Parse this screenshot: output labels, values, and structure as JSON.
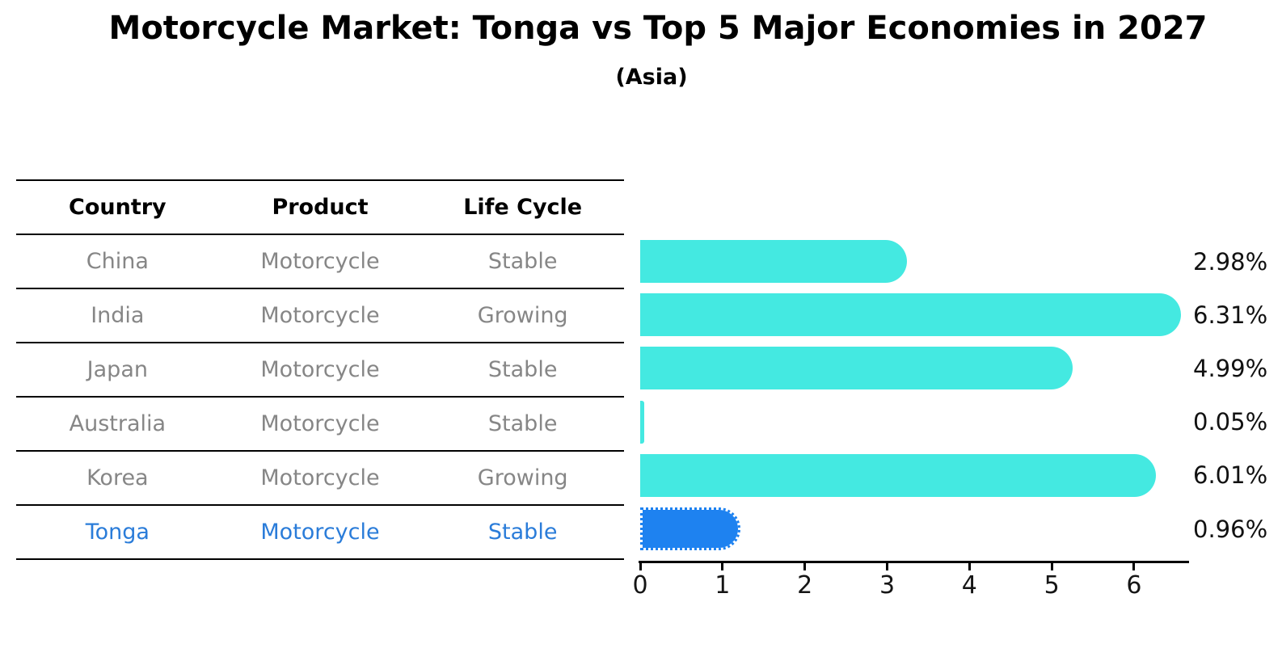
{
  "title": "Motorcycle Market: Tonga vs Top 5 Major Economies in 2027",
  "subtitle": "(Asia)",
  "table": {
    "headers": [
      "Country",
      "Product",
      "Life Cycle"
    ],
    "rows": [
      {
        "country": "China",
        "product": "Motorcycle",
        "life_cycle": "Stable",
        "highlight": false
      },
      {
        "country": "India",
        "product": "Motorcycle",
        "life_cycle": "Growing",
        "highlight": false
      },
      {
        "country": "Japan",
        "product": "Motorcycle",
        "life_cycle": "Stable",
        "highlight": false
      },
      {
        "country": "Australia",
        "product": "Motorcycle",
        "life_cycle": "Stable",
        "highlight": false
      },
      {
        "country": "Korea",
        "product": "Motorcycle",
        "life_cycle": "Growing",
        "highlight": false
      },
      {
        "country": "Tonga",
        "product": "Motorcycle",
        "life_cycle": "Stable",
        "highlight": true
      }
    ]
  },
  "chart_data": {
    "type": "bar",
    "orientation": "horizontal",
    "title": "Motorcycle Market: Tonga vs Top 5 Major Economies in 2027",
    "subtitle": "(Asia)",
    "categories": [
      "China",
      "India",
      "Japan",
      "Australia",
      "Korea",
      "Tonga"
    ],
    "values": [
      2.98,
      6.31,
      4.99,
      0.05,
      6.01,
      0.96
    ],
    "value_labels": [
      "2.98%",
      "6.31%",
      "4.99%",
      "0.05%",
      "6.01%",
      "0.96%"
    ],
    "x_ticks": [
      "0",
      "1",
      "2",
      "3",
      "4",
      "5",
      "6"
    ],
    "xlim": [
      0,
      6.66
    ],
    "grid": false,
    "legend": null,
    "bar_color": "#44E9E1",
    "highlight_index": 5,
    "highlight_bar_color": "#1E82F0",
    "highlight_bar_border_style": "dotted",
    "highlight_text_color": "#2A7CD9"
  }
}
